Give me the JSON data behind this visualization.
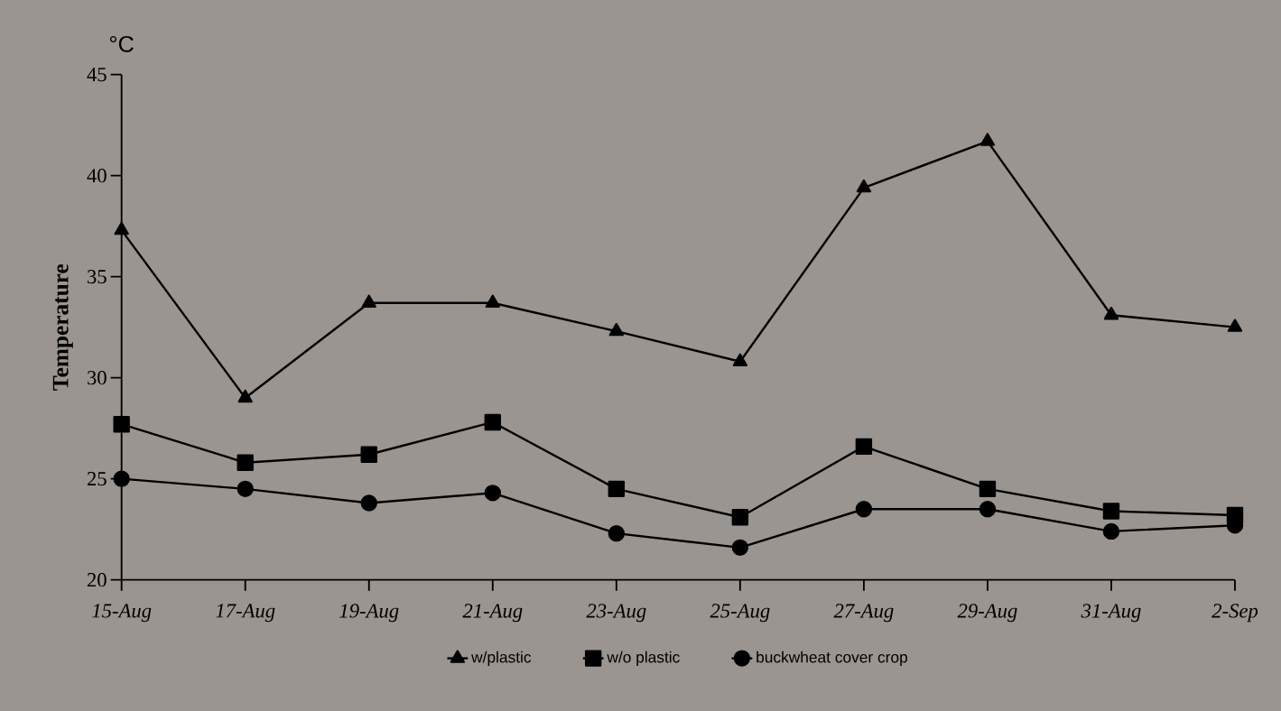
{
  "chart_data": {
    "type": "line",
    "ylabel": "Temperature",
    "annotations": [
      "°C"
    ],
    "categories": [
      "15-Aug",
      "17-Aug",
      "19-Aug",
      "21-Aug",
      "23-Aug",
      "25-Aug",
      "27-Aug",
      "29-Aug",
      "31-Aug",
      "2-Sep"
    ],
    "ylim": [
      20,
      45
    ],
    "yticks": [
      20,
      25,
      30,
      35,
      40,
      45
    ],
    "legend": "bottom",
    "line_style": "solid",
    "series": [
      {
        "name": "w/plastic",
        "color": "#000000",
        "marker": "triangle",
        "values": [
          37.3,
          29.0,
          33.7,
          33.7,
          32.3,
          30.8,
          39.4,
          41.7,
          33.1,
          32.5
        ]
      },
      {
        "name": "w/o plastic",
        "color": "#000000",
        "marker": "square",
        "values": [
          27.7,
          25.8,
          26.2,
          27.8,
          24.5,
          23.1,
          26.6,
          24.5,
          23.4,
          23.2
        ]
      },
      {
        "name": "buckwheat cover crop",
        "color": "#000000",
        "marker": "circle",
        "values": [
          25.0,
          24.5,
          23.8,
          24.3,
          22.3,
          21.6,
          23.5,
          23.5,
          22.4,
          22.7
        ]
      }
    ]
  }
}
